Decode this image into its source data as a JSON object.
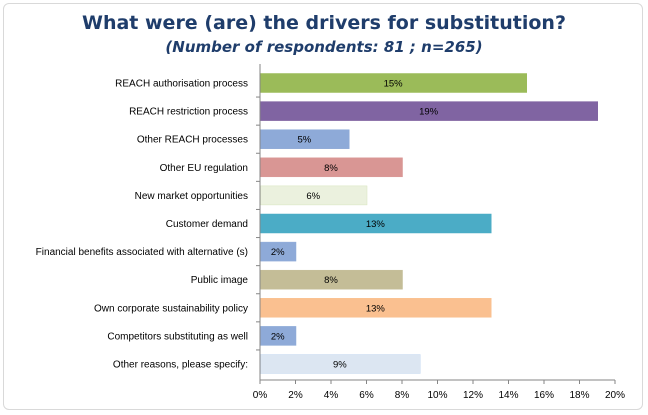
{
  "chart_data": {
    "type": "bar",
    "orientation": "horizontal",
    "title": "What were (are) the drivers for substitution?",
    "subtitle": "(Number of respondents: 81 ; n=265)",
    "categories": [
      "REACH authorisation process",
      "REACH restriction process",
      "Other REACH processes",
      "Other EU regulation",
      "New market opportunities",
      "Customer demand",
      "Financial benefits associated with alternative (s)",
      "Public image",
      "Own corporate sustainability policy",
      "Competitors substituting as well",
      "Other reasons, please specify:"
    ],
    "values": [
      15,
      19,
      5,
      8,
      6,
      13,
      2,
      8,
      13,
      2,
      9
    ],
    "value_labels": [
      "15%",
      "19%",
      "5%",
      "8%",
      "6%",
      "13%",
      "2%",
      "8%",
      "13%",
      "2%",
      "9%"
    ],
    "colors": [
      "#9bbb59",
      "#8064a2",
      "#8eaad8",
      "#d99694",
      "#ebf1de",
      "#4bacc6",
      "#8eaad8",
      "#c4bd97",
      "#fac090",
      "#8eaad8",
      "#dce6f2"
    ],
    "bar_borders": [
      "#9bbb59",
      "#8064a2",
      "#8eaad8",
      "#d99694",
      "#d7e4bd",
      "#4bacc6",
      "#8eaad8",
      "#c4bd97",
      "#fac090",
      "#8eaad8",
      "#c6d9f1"
    ],
    "xlim": [
      0,
      20
    ],
    "xticks": [
      0,
      2,
      4,
      6,
      8,
      10,
      12,
      14,
      16,
      18,
      20
    ],
    "xtick_labels": [
      "0%",
      "2%",
      "4%",
      "6%",
      "8%",
      "10%",
      "12%",
      "14%",
      "16%",
      "18%",
      "20%"
    ],
    "grid": false,
    "legend": "none"
  }
}
